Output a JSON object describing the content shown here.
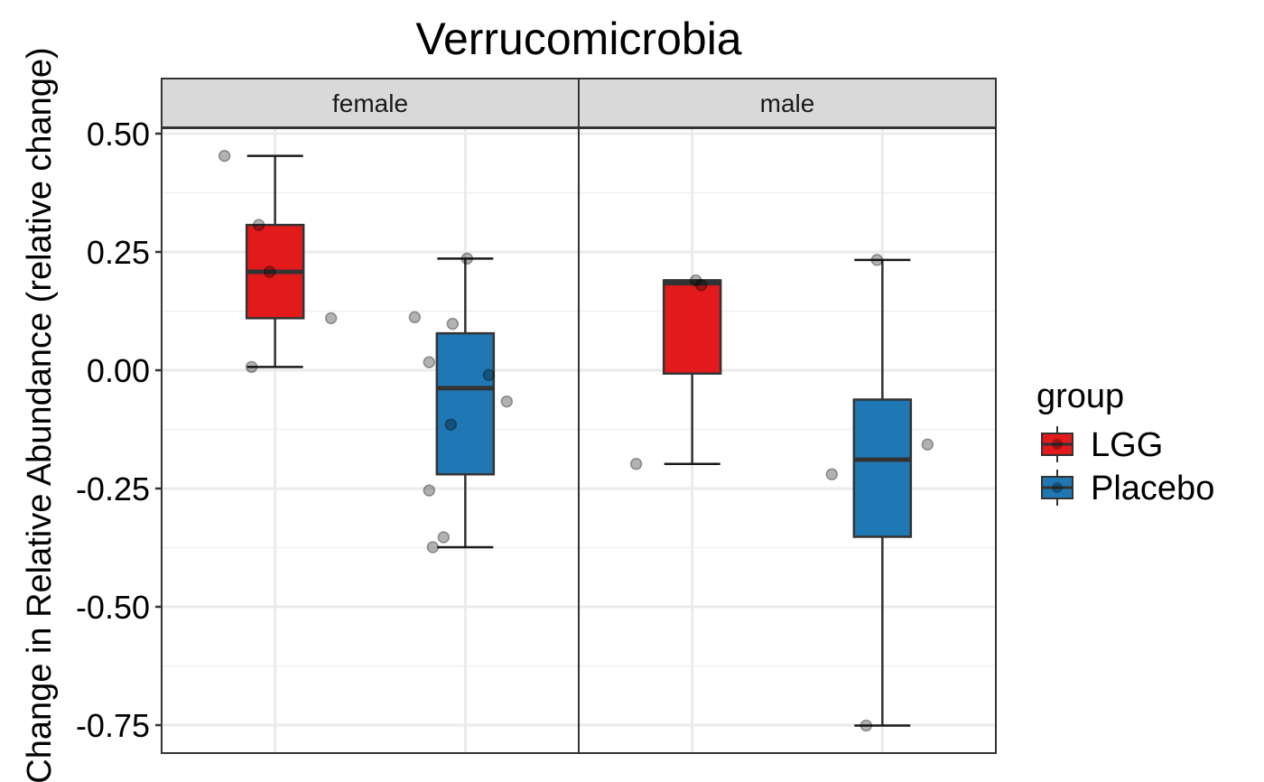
{
  "chart_data": {
    "type": "box",
    "title": "Verrucomicrobia",
    "ylabel": "Change in Relative Abundance (relative change)",
    "xlabel": "",
    "ylim": [
      -0.81,
      0.63
    ],
    "yticks": [
      -0.75,
      -0.5,
      -0.25,
      0.0,
      0.25,
      0.5
    ],
    "ytick_labels": [
      "-0.75",
      "-0.50",
      "-0.25",
      "0.00",
      "0.25",
      "0.50"
    ],
    "grid": true,
    "facets": [
      "female",
      "male"
    ],
    "legend": {
      "title": "group",
      "position": "right",
      "entries": [
        {
          "name": "LGG",
          "color": "#e31a1c"
        },
        {
          "name": "Placebo",
          "color": "#1f78b4"
        }
      ]
    },
    "boxes": [
      {
        "facet": "female",
        "group": "LGG",
        "min": 0.007,
        "q1": 0.11,
        "median": 0.208,
        "q3": 0.307,
        "max": 0.453
      },
      {
        "facet": "female",
        "group": "Placebo",
        "min": -0.374,
        "q1": -0.22,
        "median": -0.038,
        "q3": 0.078,
        "max": 0.236
      },
      {
        "facet": "male",
        "group": "LGG",
        "min": -0.198,
        "q1": -0.007,
        "median": 0.184,
        "q3": 0.19,
        "max": 0.19
      },
      {
        "facet": "male",
        "group": "Placebo",
        "min": -0.751,
        "q1": -0.352,
        "median": -0.189,
        "q3": -0.062,
        "max": 0.233
      }
    ],
    "points": [
      {
        "facet": "female",
        "group": "LGG",
        "values": [
          0.453,
          0.307,
          0.208,
          0.11,
          0.007
        ]
      },
      {
        "facet": "female",
        "group": "Placebo",
        "values": [
          0.236,
          0.112,
          0.098,
          0.017,
          -0.01,
          -0.066,
          -0.115,
          -0.254,
          -0.353,
          -0.374
        ]
      },
      {
        "facet": "male",
        "group": "LGG",
        "values": [
          0.19,
          0.18,
          -0.198
        ]
      },
      {
        "facet": "male",
        "group": "Placebo",
        "values": [
          0.233,
          -0.157,
          -0.22,
          -0.751
        ]
      }
    ]
  }
}
